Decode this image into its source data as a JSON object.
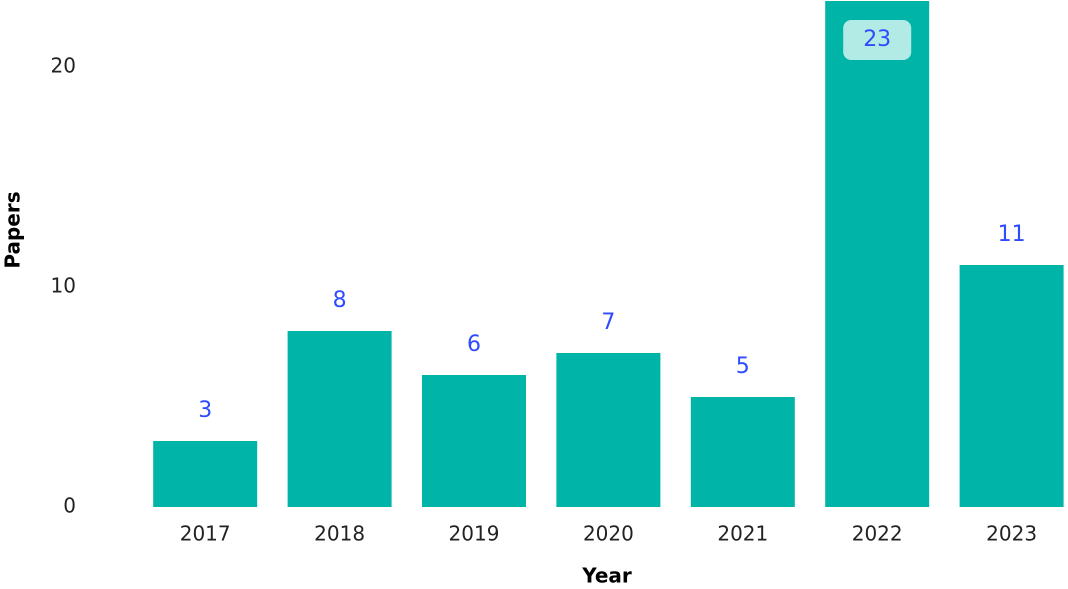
{
  "chart_data": {
    "type": "bar",
    "x_label": "Year",
    "y_label": "Papers",
    "categories": [
      "2017",
      "2018",
      "2019",
      "2020",
      "2021",
      "2022",
      "2023"
    ],
    "values": [
      3,
      8,
      6,
      7,
      5,
      23,
      11
    ],
    "color": "#00b5a8",
    "label_color": "#2f4bff",
    "ylim": [
      0,
      23
    ],
    "yticks": [
      0,
      10,
      20
    ],
    "grid": false
  }
}
